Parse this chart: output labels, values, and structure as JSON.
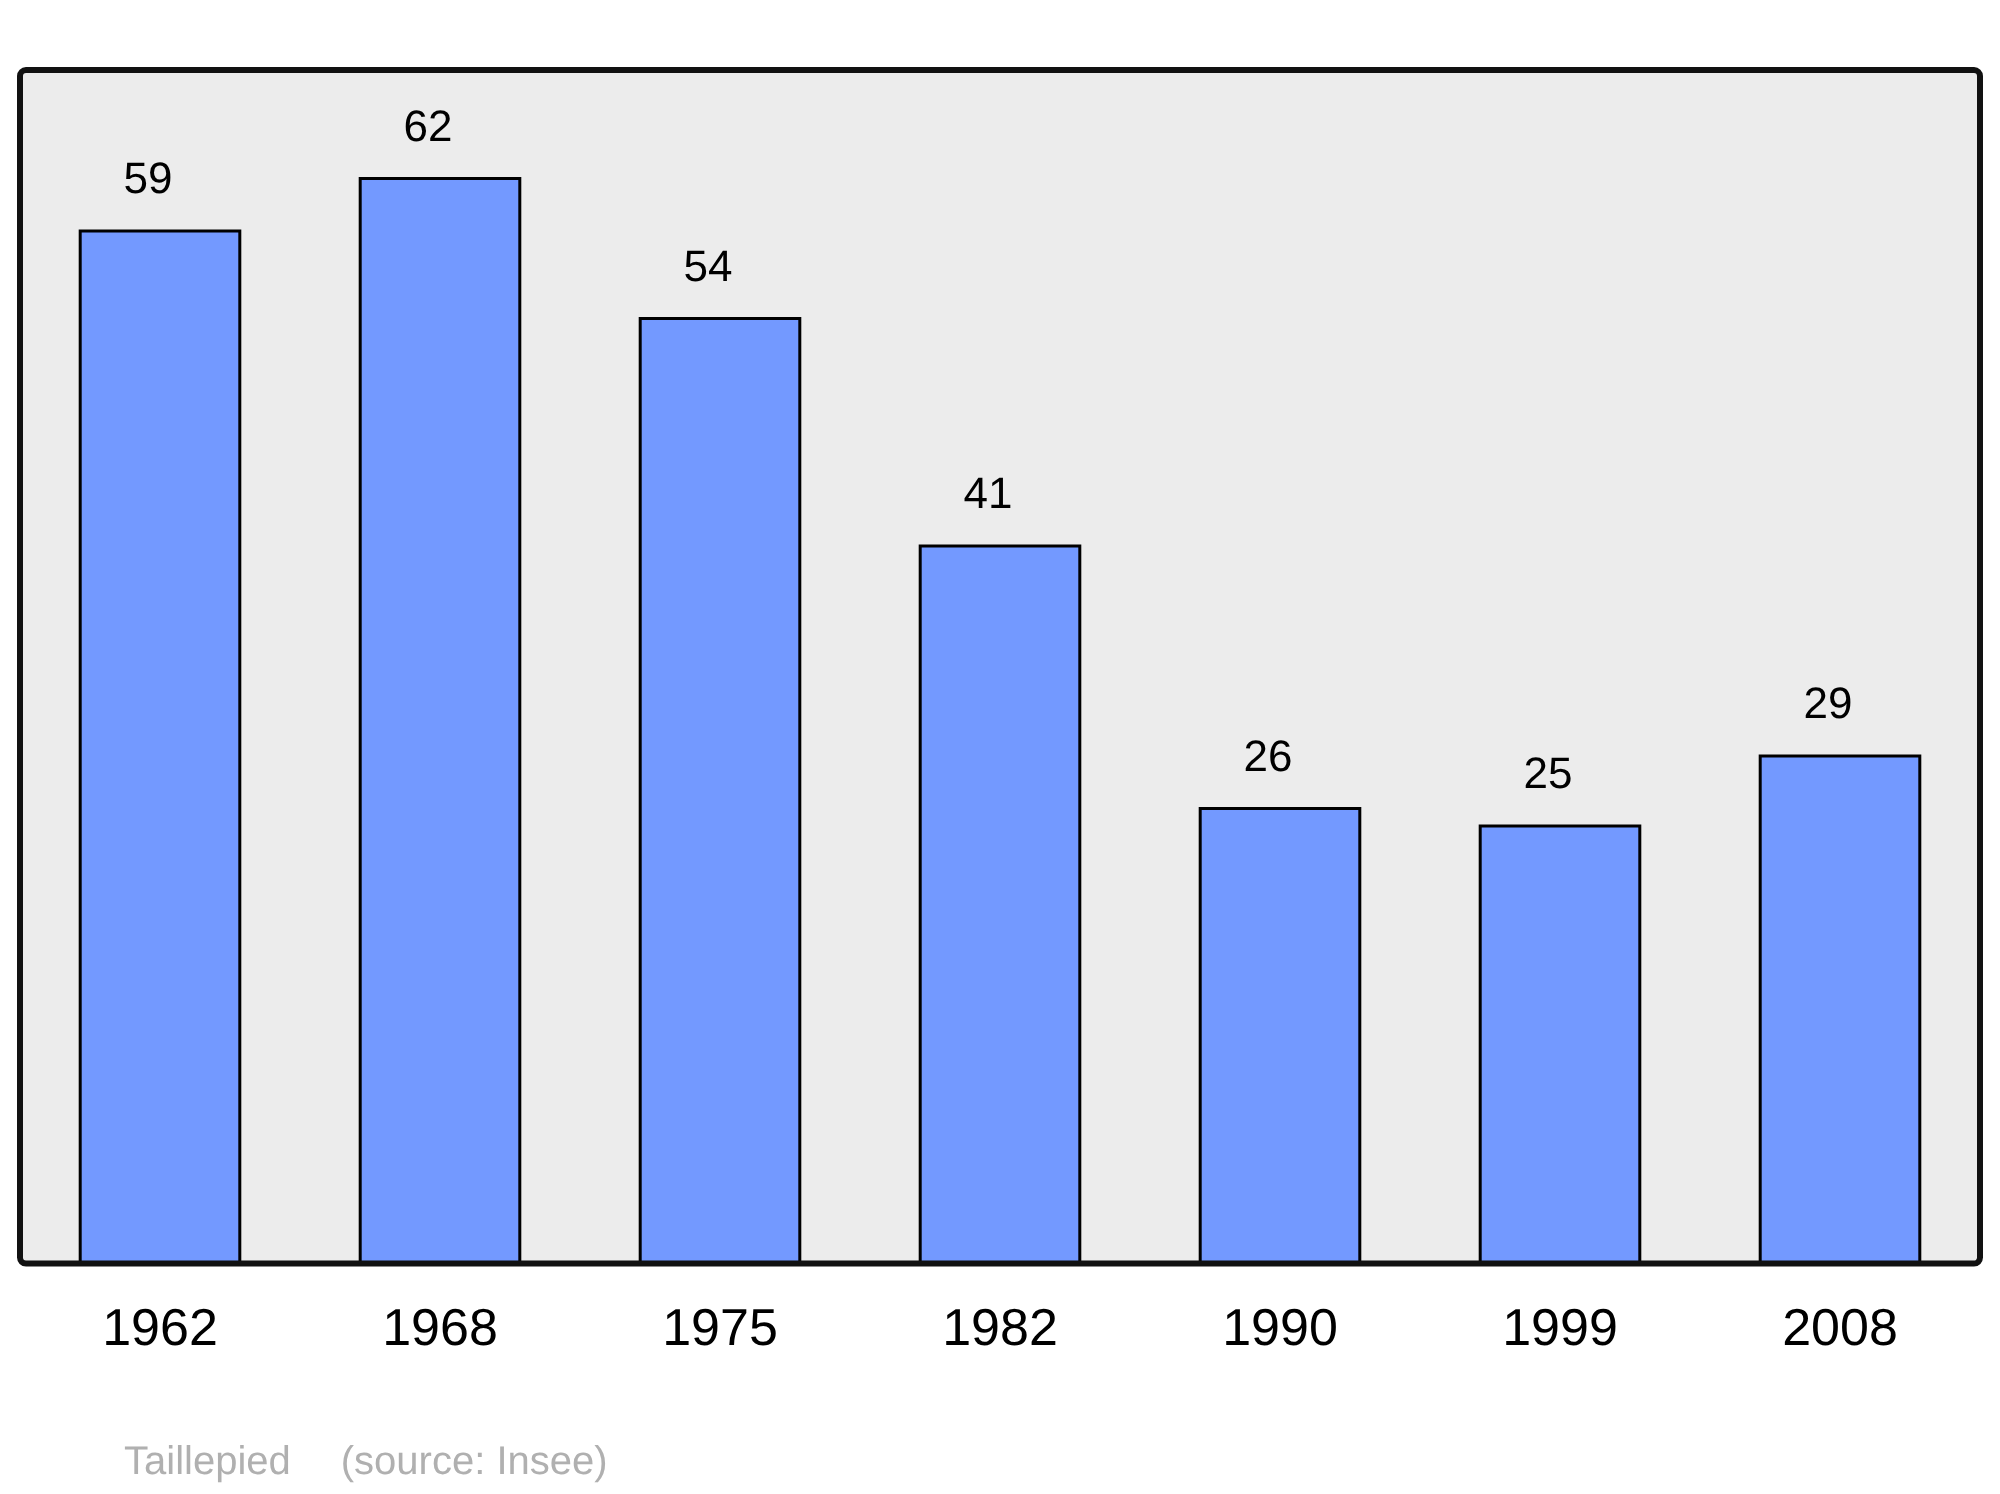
{
  "chart_data": {
    "type": "bar",
    "categories": [
      "1962",
      "1968",
      "1975",
      "1982",
      "1990",
      "1999",
      "2008"
    ],
    "values": [
      59,
      62,
      54,
      41,
      26,
      25,
      29
    ],
    "color": "#7399ff",
    "data_labels": true,
    "grid": false,
    "legend": false,
    "tick_labels": "x",
    "annotations": [
      "Taillepied",
      "(source: Insee)"
    ]
  }
}
